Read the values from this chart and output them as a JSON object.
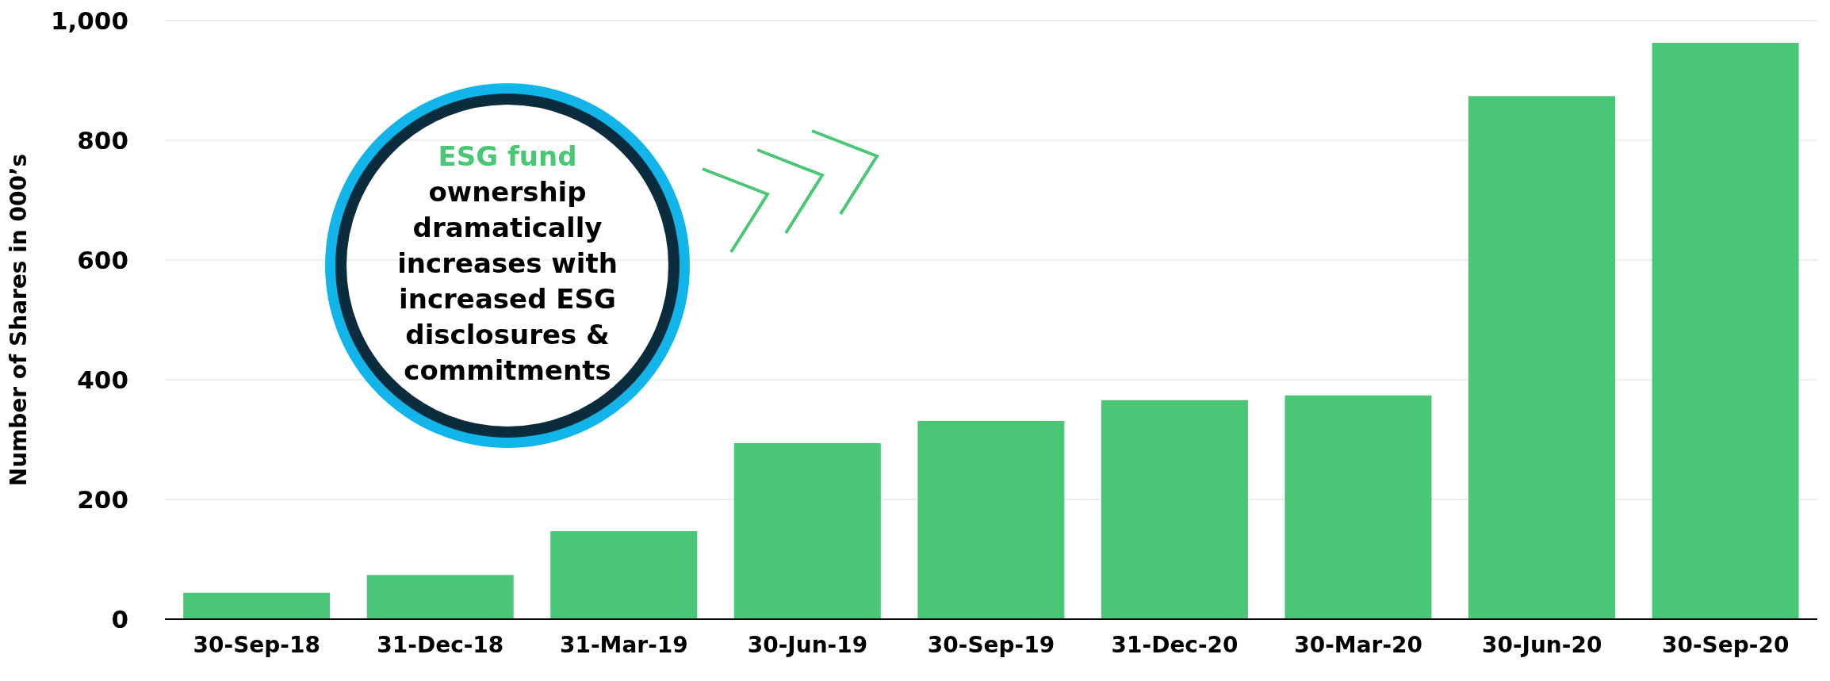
{
  "chart_data": {
    "type": "bar",
    "ylabel": "Number of Shares in 000’s",
    "categories": [
      "30-Sep-18",
      "31-Dec-18",
      "31-Mar-19",
      "30-Jun-19",
      "30-Sep-19",
      "31-Dec-20",
      "30-Mar-20",
      "30-Jun-20",
      "30-Sep-20"
    ],
    "values": [
      44,
      74,
      147,
      294,
      331,
      366,
      374,
      874,
      963
    ],
    "color": "#49c776",
    "ylim": [
      0,
      1000
    ],
    "yticks": [
      0,
      200,
      400,
      600,
      800,
      {
        "value": 1000,
        "label": "1,000"
      }
    ],
    "grid": "y",
    "annotations": [
      "ESG fund",
      "ownership dramatically increases with increased ESG disclosures & commitments"
    ]
  }
}
